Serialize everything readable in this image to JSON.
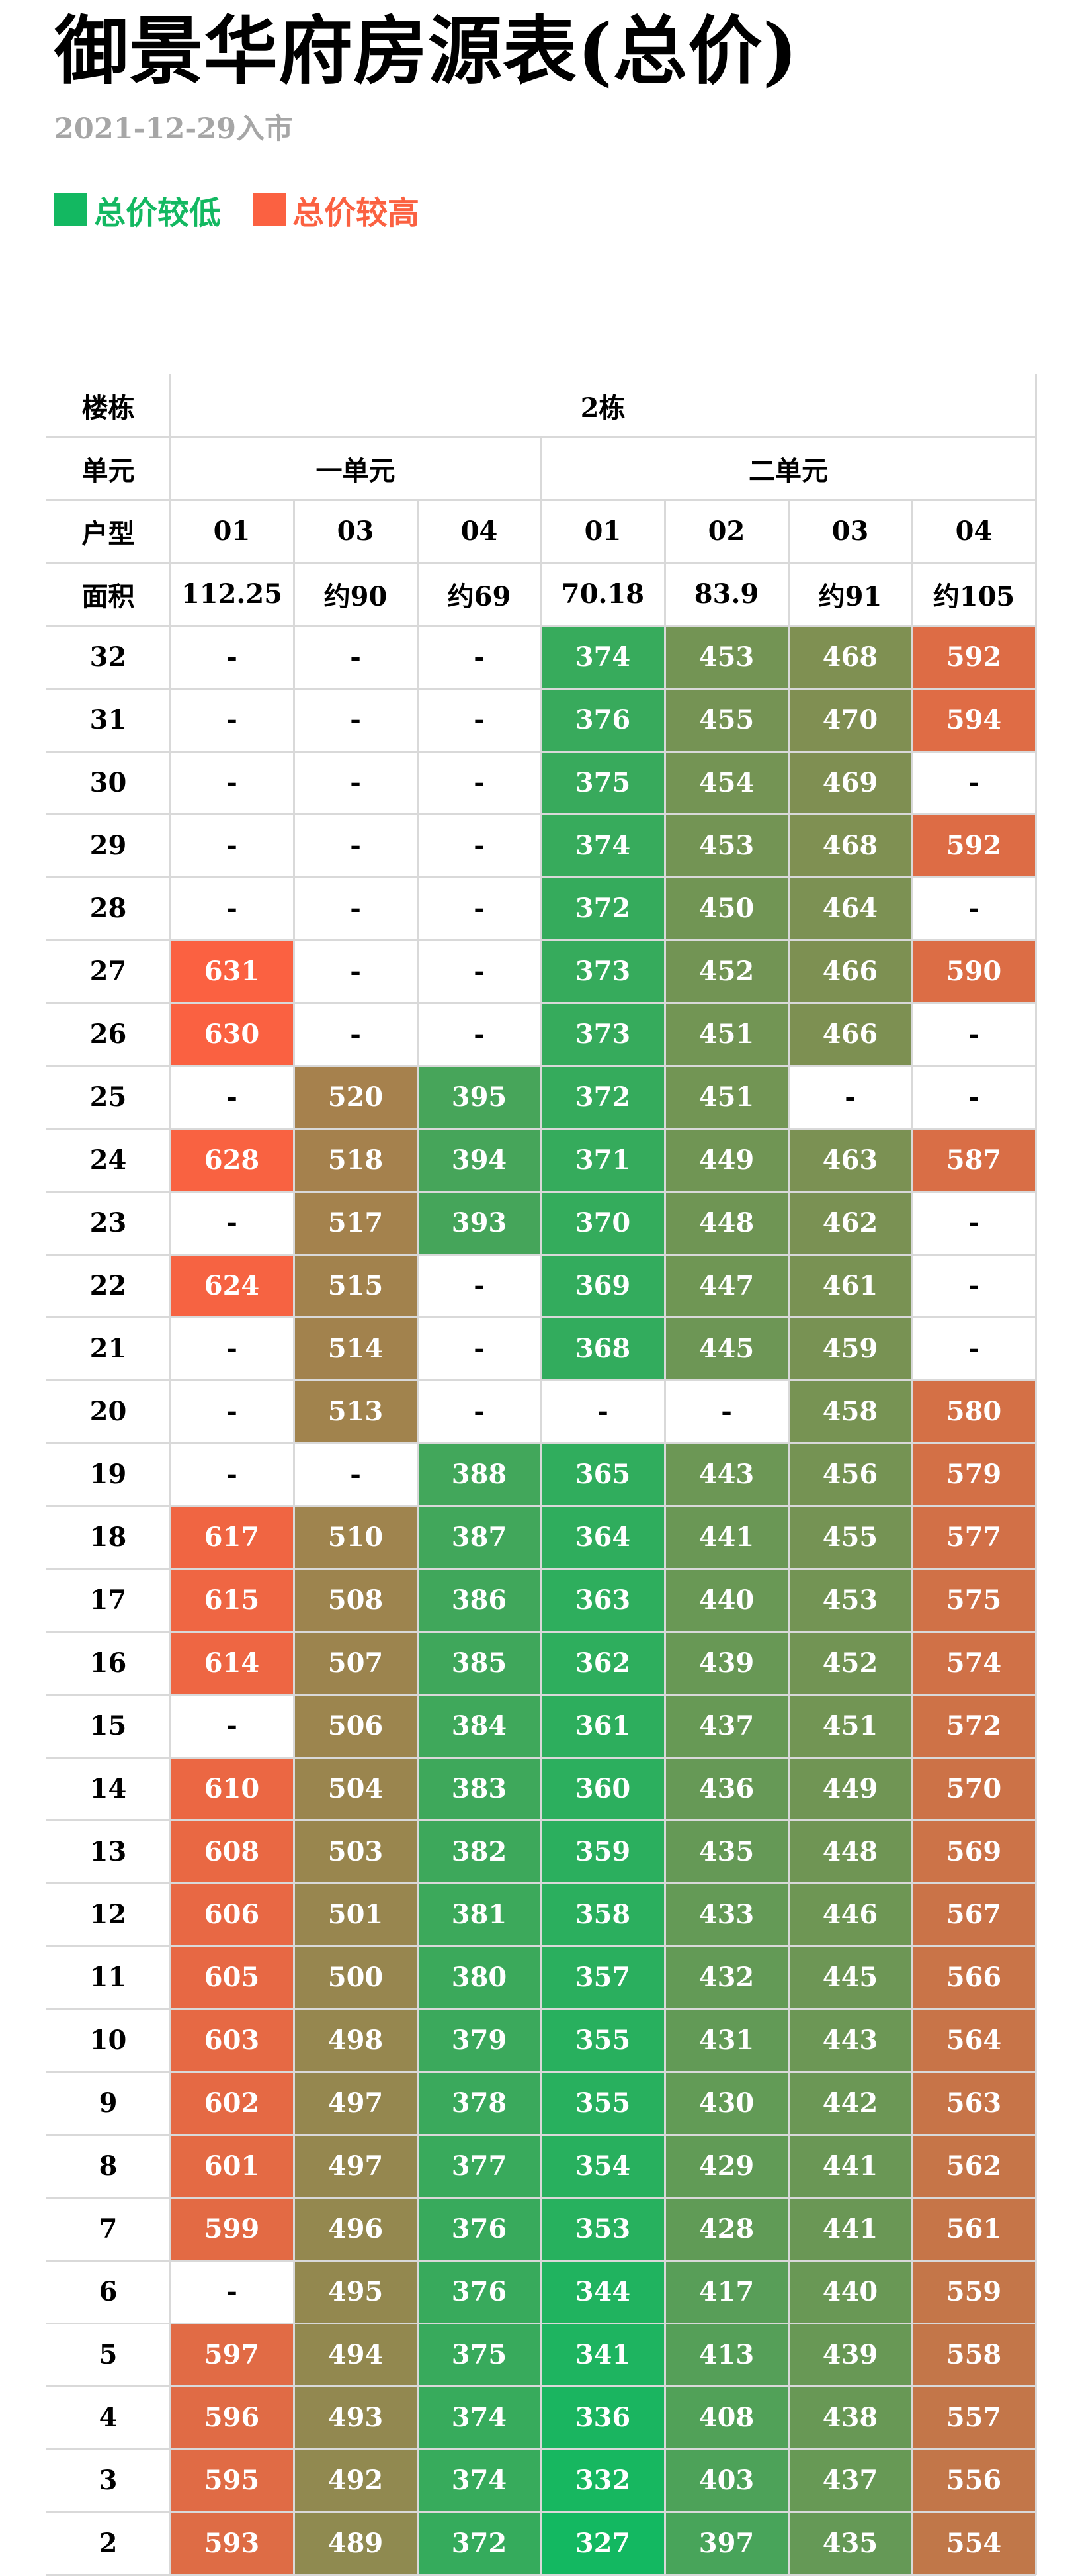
{
  "title": "御景华府房源表(总价)",
  "subtitle": "2021-12-29入市",
  "legend": [
    {
      "label": "总价较低",
      "color": "#13b861"
    },
    {
      "label": "总价较高",
      "color": "#fb6141"
    }
  ],
  "table": {
    "header": {
      "building_label": "楼栋",
      "building": "2栋",
      "unit_label": "单元",
      "units": [
        {
          "name": "一单元",
          "span": 3
        },
        {
          "name": "二单元",
          "span": 4
        }
      ],
      "type_label": "户型",
      "types": [
        "01",
        "03",
        "04",
        "01",
        "02",
        "03",
        "04"
      ],
      "area_label": "面积",
      "areas": [
        "112.25",
        "约90",
        "约69",
        "70.18",
        "83.9",
        "约91",
        "约105"
      ]
    },
    "rows": [
      {
        "floor": "32",
        "prices": [
          null,
          null,
          null,
          374,
          453,
          468,
          592
        ],
        "placeholders": [
          "-",
          "-",
          "-",
          null,
          null,
          null,
          null
        ]
      },
      {
        "floor": "31",
        "prices": [
          null,
          null,
          null,
          376,
          455,
          470,
          594
        ],
        "placeholders": [
          "-",
          "-",
          "-",
          null,
          null,
          null,
          null
        ]
      },
      {
        "floor": "30",
        "prices": [
          null,
          null,
          null,
          375,
          454,
          469,
          null
        ],
        "placeholders": [
          "-",
          "-",
          "-",
          null,
          null,
          null,
          "-"
        ]
      },
      {
        "floor": "29",
        "prices": [
          null,
          null,
          null,
          374,
          453,
          468,
          592
        ],
        "placeholders": [
          "-",
          "-",
          "-",
          null,
          null,
          null,
          null
        ]
      },
      {
        "floor": "28",
        "prices": [
          null,
          null,
          null,
          372,
          450,
          464,
          null
        ],
        "placeholders": [
          "-",
          "-",
          "-",
          null,
          null,
          null,
          "-"
        ]
      },
      {
        "floor": "27",
        "prices": [
          631,
          null,
          null,
          373,
          452,
          466,
          590
        ],
        "placeholders": [
          null,
          "-",
          "-",
          null,
          null,
          null,
          null
        ]
      },
      {
        "floor": "26",
        "prices": [
          630,
          null,
          null,
          373,
          451,
          466,
          null
        ],
        "placeholders": [
          null,
          "-",
          "-",
          null,
          null,
          null,
          "-"
        ]
      },
      {
        "floor": "25",
        "prices": [
          null,
          520,
          395,
          372,
          451,
          null,
          null
        ],
        "placeholders": [
          "-",
          null,
          null,
          null,
          null,
          "-",
          "-"
        ]
      },
      {
        "floor": "24",
        "prices": [
          628,
          518,
          394,
          371,
          449,
          463,
          587
        ],
        "placeholders": [
          null,
          null,
          null,
          null,
          null,
          null,
          null
        ]
      },
      {
        "floor": "23",
        "prices": [
          null,
          517,
          393,
          370,
          448,
          462,
          null
        ],
        "placeholders": [
          "-",
          null,
          null,
          null,
          null,
          null,
          "-"
        ]
      },
      {
        "floor": "22",
        "prices": [
          624,
          515,
          null,
          369,
          447,
          461,
          null
        ],
        "placeholders": [
          null,
          null,
          "-",
          null,
          null,
          null,
          "-"
        ]
      },
      {
        "floor": "21",
        "prices": [
          null,
          514,
          null,
          368,
          445,
          459,
          null
        ],
        "placeholders": [
          "-",
          null,
          "-",
          null,
          null,
          null,
          "-"
        ]
      },
      {
        "floor": "20",
        "prices": [
          null,
          513,
          null,
          null,
          null,
          458,
          580
        ],
        "placeholders": [
          "-",
          null,
          "-",
          "-",
          "-",
          null,
          null
        ]
      },
      {
        "floor": "19",
        "prices": [
          null,
          null,
          388,
          365,
          443,
          456,
          579
        ],
        "placeholders": [
          "-",
          "-",
          null,
          null,
          null,
          null,
          null
        ]
      },
      {
        "floor": "18",
        "prices": [
          617,
          510,
          387,
          364,
          441,
          455,
          577
        ],
        "placeholders": [
          null,
          null,
          null,
          null,
          null,
          null,
          null
        ]
      },
      {
        "floor": "17",
        "prices": [
          615,
          508,
          386,
          363,
          440,
          453,
          575
        ],
        "placeholders": [
          null,
          null,
          null,
          null,
          null,
          null,
          null
        ]
      },
      {
        "floor": "16",
        "prices": [
          614,
          507,
          385,
          362,
          439,
          452,
          574
        ],
        "placeholders": [
          null,
          null,
          null,
          null,
          null,
          null,
          null
        ]
      },
      {
        "floor": "15",
        "prices": [
          null,
          506,
          384,
          361,
          437,
          451,
          572
        ],
        "placeholders": [
          "-",
          null,
          null,
          null,
          null,
          null,
          null
        ]
      },
      {
        "floor": "14",
        "prices": [
          610,
          504,
          383,
          360,
          436,
          449,
          570
        ],
        "placeholders": [
          null,
          null,
          null,
          null,
          null,
          null,
          null
        ]
      },
      {
        "floor": "13",
        "prices": [
          608,
          503,
          382,
          359,
          435,
          448,
          569
        ],
        "placeholders": [
          null,
          null,
          null,
          null,
          null,
          null,
          null
        ]
      },
      {
        "floor": "12",
        "prices": [
          606,
          501,
          381,
          358,
          433,
          446,
          567
        ],
        "placeholders": [
          null,
          null,
          null,
          null,
          null,
          null,
          null
        ]
      },
      {
        "floor": "11",
        "prices": [
          605,
          500,
          380,
          357,
          432,
          445,
          566
        ],
        "placeholders": [
          null,
          null,
          null,
          null,
          null,
          null,
          null
        ]
      },
      {
        "floor": "10",
        "prices": [
          603,
          498,
          379,
          355,
          431,
          443,
          564
        ],
        "placeholders": [
          null,
          null,
          null,
          null,
          null,
          null,
          null
        ]
      },
      {
        "floor": "9",
        "prices": [
          602,
          497,
          378,
          355,
          430,
          442,
          563
        ],
        "placeholders": [
          null,
          null,
          null,
          null,
          null,
          null,
          null
        ]
      },
      {
        "floor": "8",
        "prices": [
          601,
          497,
          377,
          354,
          429,
          441,
          562
        ],
        "placeholders": [
          null,
          null,
          null,
          null,
          null,
          null,
          null
        ]
      },
      {
        "floor": "7",
        "prices": [
          599,
          496,
          376,
          353,
          428,
          441,
          561
        ],
        "placeholders": [
          null,
          null,
          null,
          null,
          null,
          null,
          null
        ]
      },
      {
        "floor": "6",
        "prices": [
          null,
          495,
          376,
          344,
          417,
          440,
          559
        ],
        "placeholders": [
          "-",
          null,
          null,
          null,
          null,
          null,
          null
        ]
      },
      {
        "floor": "5",
        "prices": [
          597,
          494,
          375,
          341,
          413,
          439,
          558
        ],
        "placeholders": [
          null,
          null,
          null,
          null,
          null,
          null,
          null
        ]
      },
      {
        "floor": "4",
        "prices": [
          596,
          493,
          374,
          336,
          408,
          438,
          557
        ],
        "placeholders": [
          null,
          null,
          null,
          null,
          null,
          null,
          null
        ]
      },
      {
        "floor": "3",
        "prices": [
          595,
          492,
          374,
          332,
          403,
          437,
          556
        ],
        "placeholders": [
          null,
          null,
          null,
          null,
          null,
          null,
          null
        ]
      },
      {
        "floor": "2",
        "prices": [
          593,
          489,
          372,
          327,
          397,
          435,
          554
        ],
        "placeholders": [
          null,
          null,
          null,
          null,
          null,
          null,
          null
        ]
      }
    ]
  }
}
